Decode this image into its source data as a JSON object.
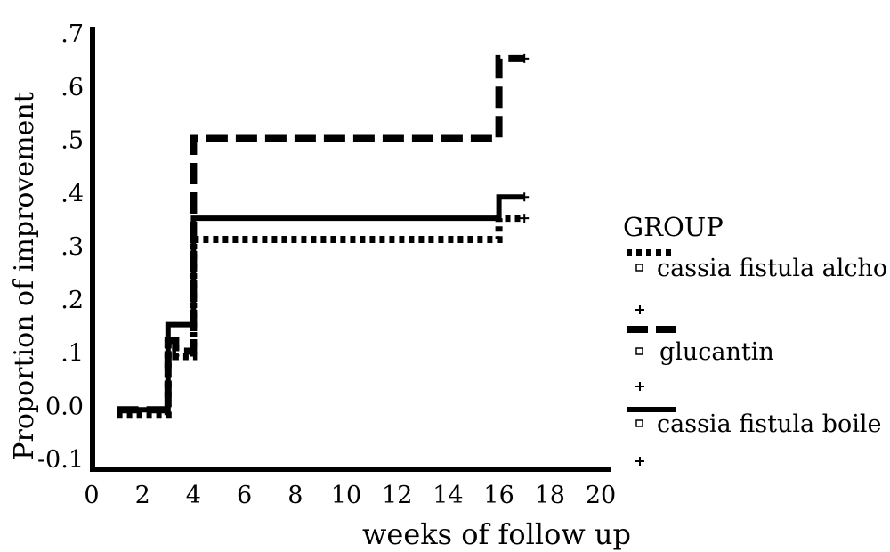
{
  "chart_data": {
    "type": "line",
    "xlabel": "weeks of follow up",
    "ylabel": "Proportion of improvement",
    "xlim": [
      0,
      20
    ],
    "ylim": [
      -0.13,
      0.7
    ],
    "x_ticks": [
      0,
      2,
      4,
      6,
      8,
      10,
      12,
      14,
      16,
      18,
      20
    ],
    "x_tick_labels": [
      "0",
      "2",
      "4",
      "6",
      "8",
      "10",
      "12",
      "14",
      "16",
      "18",
      "20"
    ],
    "y_ticks": [
      0.7,
      0.6,
      0.5,
      0.4,
      0.3,
      0.2,
      0.1,
      0.0,
      -0.1
    ],
    "y_tick_labels": [
      ".7",
      ".6",
      ".5",
      ".4",
      ".3",
      ".2",
      ".1",
      "0.0",
      "-0.1"
    ],
    "grid": false,
    "legend_position": "right",
    "legend_title": "GROUP",
    "series": [
      {
        "name": "cassia fistula alcho",
        "style": "dotted",
        "color": "#000000",
        "x": [
          1,
          3,
          3,
          3.3,
          3.3,
          4,
          4,
          16,
          16,
          17
        ],
        "y": [
          -0.02,
          -0.02,
          0.12,
          0.12,
          0.09,
          0.09,
          0.31,
          0.31,
          0.35,
          0.35
        ],
        "censor": {
          "x": 17,
          "y": 0.35
        }
      },
      {
        "name": "glucantin",
        "style": "dashed",
        "color": "#000000",
        "x": [
          1,
          3,
          3,
          3.3,
          3.3,
          4,
          4,
          16,
          16,
          17
        ],
        "y": [
          -0.01,
          -0.01,
          0.12,
          0.12,
          0.1,
          0.1,
          0.5,
          0.5,
          0.65,
          0.65
        ],
        "censor": {
          "x": 17,
          "y": 0.65
        }
      },
      {
        "name": "cassia fistula boile",
        "style": "solid",
        "color": "#000000",
        "x": [
          1,
          3,
          3,
          4,
          4,
          16,
          16,
          17
        ],
        "y": [
          -0.01,
          -0.01,
          0.15,
          0.15,
          0.35,
          0.35,
          0.39,
          0.39
        ],
        "censor": {
          "x": 17,
          "y": 0.39
        }
      }
    ]
  }
}
